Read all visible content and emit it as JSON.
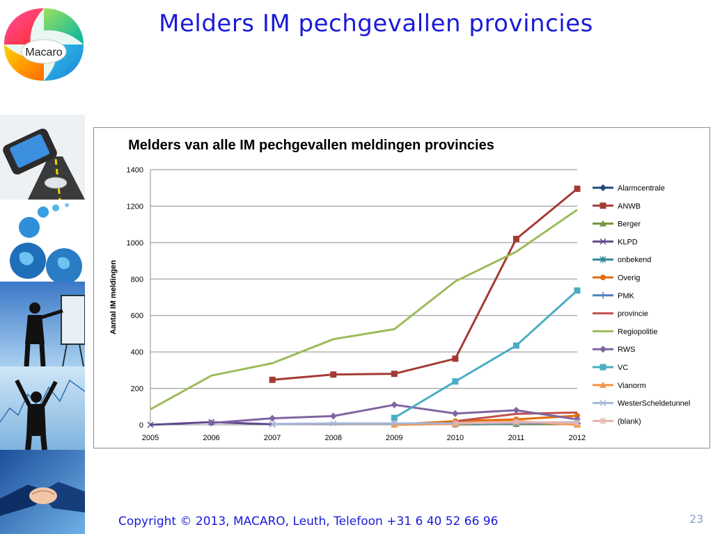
{
  "slide": {
    "title": "Melders IM pechgevallen provincies",
    "logo_text": "Macaro",
    "footer": "Copyright © 2013, MACARO, Leuth, Telefoon +31 6 40 52 66 96",
    "page_number": "23"
  },
  "colors": {
    "title": "#1a1ad8",
    "Alarmcentrale": "#1f497d",
    "ANWB": "#a33b34",
    "Berger": "#77933c",
    "KLPD": "#5f4a8b",
    "onbekend": "#31859c",
    "Overig": "#e46c0a",
    "PMK": "#4f81bd",
    "provincie": "#c0504d",
    "Regiopolitie": "#9bbb59",
    "RWS": "#8064a2",
    "VC": "#4bacc6",
    "Vianorm": "#f79646",
    "WesterScheldetunnel": "#a5b6d8",
    "(blank)": "#e6b4b0"
  },
  "chart_data": {
    "type": "line",
    "title": "Melders van alle IM pechgevallen meldingen provincies",
    "xlabel": "",
    "ylabel": "Aantal IM meldingen",
    "x": [
      "2005",
      "2006",
      "2007",
      "2008",
      "2009",
      "2010",
      "2011",
      "2012"
    ],
    "ylim": [
      0,
      1400
    ],
    "yticks": [
      "0",
      "200",
      "400",
      "600",
      "800",
      "1000",
      "1200",
      "1400"
    ],
    "grid": true,
    "legend": "right",
    "series": [
      {
        "name": "Alarmcentrale",
        "marker": "diamond",
        "values": [
          null,
          null,
          null,
          null,
          null,
          3,
          5,
          5
        ]
      },
      {
        "name": "ANWB",
        "marker": "square",
        "values": [
          null,
          null,
          247,
          276,
          280,
          363,
          1020,
          1295
        ]
      },
      {
        "name": "Berger",
        "marker": "triangle",
        "values": [
          null,
          null,
          null,
          null,
          null,
          2,
          5,
          5
        ]
      },
      {
        "name": "KLPD",
        "marker": "x",
        "values": [
          0,
          15,
          3,
          null,
          null,
          null,
          null,
          null
        ]
      },
      {
        "name": "onbekend",
        "marker": "star",
        "values": [
          null,
          null,
          null,
          null,
          null,
          5,
          10,
          12
        ]
      },
      {
        "name": "Overig",
        "marker": "circle",
        "values": [
          null,
          null,
          null,
          null,
          2,
          20,
          30,
          50
        ]
      },
      {
        "name": "PMK",
        "marker": "plus",
        "values": [
          null,
          null,
          null,
          null,
          null,
          5,
          8,
          10
        ]
      },
      {
        "name": "provincie",
        "marker": "none",
        "values": [
          null,
          null,
          null,
          null,
          null,
          20,
          60,
          68
        ]
      },
      {
        "name": "Regiopolitie",
        "marker": "none",
        "values": [
          85,
          270,
          338,
          470,
          525,
          787,
          950,
          1180
        ]
      },
      {
        "name": "RWS",
        "marker": "diamond",
        "values": [
          null,
          10,
          36,
          48,
          110,
          62,
          80,
          30
        ]
      },
      {
        "name": "VC",
        "marker": "square",
        "values": [
          null,
          null,
          null,
          null,
          38,
          238,
          435,
          737
        ]
      },
      {
        "name": "Vianorm",
        "marker": "triangle",
        "values": [
          null,
          null,
          null,
          null,
          0,
          5,
          20,
          0
        ]
      },
      {
        "name": "WesterScheldetunnel",
        "marker": "x",
        "values": [
          null,
          null,
          5,
          8,
          8,
          8,
          12,
          15
        ]
      },
      {
        "name": "(blank)",
        "marker": "star",
        "values": [
          null,
          null,
          null,
          null,
          null,
          10,
          15,
          10
        ]
      }
    ]
  }
}
